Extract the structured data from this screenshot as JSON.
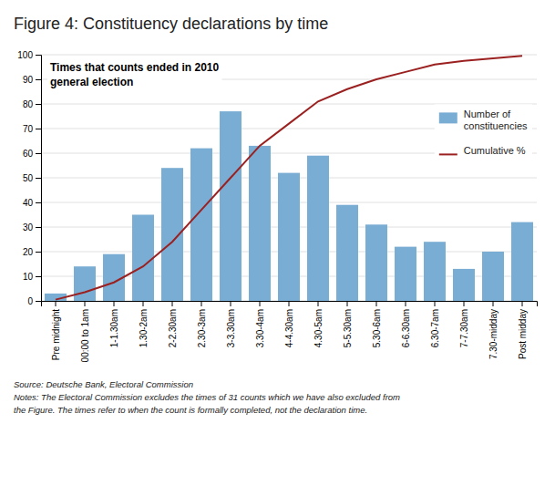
{
  "chart_data": {
    "type": "bar",
    "title": "Figure 4: Constituency declarations by time",
    "annotation": "Times that counts ended in 2010\ngeneral election",
    "source": "Source: Deutsche Bank, Electoral Commission\nNotes: The Electoral Commission excludes the times of 31 counts which we have also excluded from\nthe Figure. The times refer to when the count is formally completed, not the declaration time.",
    "categories": [
      "Pre midnight",
      "00:00 to 1am",
      "1-1.30am",
      "1.30-2am",
      "2-2.30am",
      "2.30-3am",
      "3-3.30am",
      "3.30-4am",
      "4-4.30am",
      "4.30-5am",
      "5-5.30am",
      "5.30-6am",
      "6-6.30am",
      "6.30-7am",
      "7-7.30am",
      "7.30-midday",
      "Post midday"
    ],
    "series": [
      {
        "name": "Number of\nconstituencies",
        "type": "bar",
        "color": "#7aadd4",
        "values": [
          3,
          14,
          19,
          35,
          54,
          62,
          77,
          63,
          52,
          59,
          39,
          31,
          22,
          24,
          13,
          20,
          32
        ]
      },
      {
        "name": "Cumulative %",
        "type": "line",
        "color": "#9b2020",
        "values": [
          0.5,
          3.5,
          7.5,
          14,
          24,
          37,
          50,
          63,
          72,
          81,
          86,
          90,
          93,
          96,
          97.5,
          98.5,
          99.5
        ]
      }
    ],
    "ylim": [
      0,
      100
    ],
    "yticks": [
      0,
      10,
      20,
      30,
      40,
      50,
      60,
      70,
      80,
      90,
      100
    ],
    "grid": true,
    "legend": "upper right"
  }
}
